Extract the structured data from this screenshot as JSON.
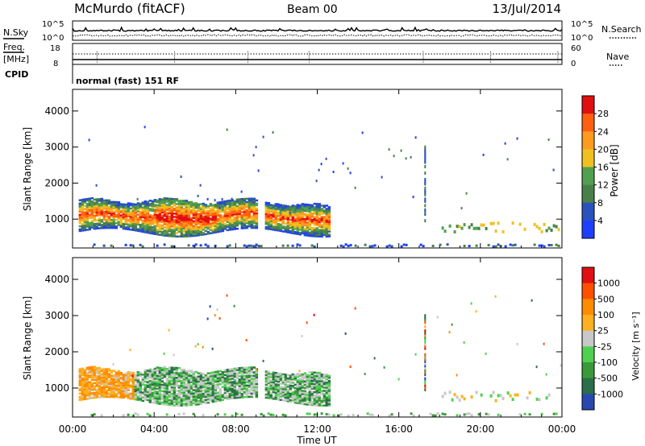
{
  "header": {
    "station": "McMurdo (fitACF)",
    "beam": "Beam 00",
    "date": "13/Jul/2014"
  },
  "noise_panel": {
    "left_label": "N.Sky",
    "right_label": "N.Search",
    "top_tick": "10^5",
    "bottom_tick": "10^0"
  },
  "freq_panel": {
    "left_label_line1": "Freq.",
    "left_label_line2": "[MHz]",
    "left_ticks": [
      "18",
      "8"
    ],
    "right_ticks": [
      "60",
      "0"
    ],
    "right_label": "Nave",
    "cpid_label": "CPID",
    "cpid_value": "normal (fast) 151 RF"
  },
  "colors": {
    "power_scale": [
      "#1f3fff",
      "#2a52be",
      "#4a7f4a",
      "#50a050",
      "#f0c020",
      "#ff9a20",
      "#ff6010",
      "#e01010"
    ],
    "velocity_scale": [
      "#e01010",
      "#ff5000",
      "#ff8c00",
      "#ffb020",
      "#c8c8c8",
      "#50d050",
      "#3a9a3a",
      "#2a6f4a",
      "#2848b0"
    ]
  },
  "chart_data": [
    {
      "type": "heatmap",
      "title": "",
      "xlabel": "",
      "ylabel": "Slant Range [km]",
      "x_ticks": [
        "00:00",
        "04:00",
        "08:00",
        "12:00",
        "16:00",
        "20:00",
        "00:00"
      ],
      "y_ticks": [
        "1000",
        "2000",
        "3000",
        "4000"
      ],
      "xlim_hours": [
        0,
        24
      ],
      "ylim_km": [
        200,
        4600
      ],
      "colorbar_label": "Power [dB]",
      "colorbar_ticks": [
        "4",
        "8",
        "12",
        "16",
        "20",
        "24",
        "28"
      ],
      "colorbar_range": [
        0,
        32
      ]
    },
    {
      "type": "heatmap",
      "title": "",
      "xlabel": "Time UT",
      "ylabel": "Slant Range [km]",
      "x_ticks": [
        "00:00",
        "04:00",
        "08:00",
        "12:00",
        "16:00",
        "20:00",
        "00:00"
      ],
      "y_ticks": [
        "1000",
        "2000",
        "3000",
        "4000"
      ],
      "xlim_hours": [
        0,
        24
      ],
      "ylim_km": [
        200,
        4600
      ],
      "colorbar_label": "Velocity [m s⁻¹]",
      "colorbar_ticks": [
        "1000",
        "500",
        "100",
        "25",
        "-25",
        "-100",
        "-500",
        "-1000"
      ]
    }
  ]
}
